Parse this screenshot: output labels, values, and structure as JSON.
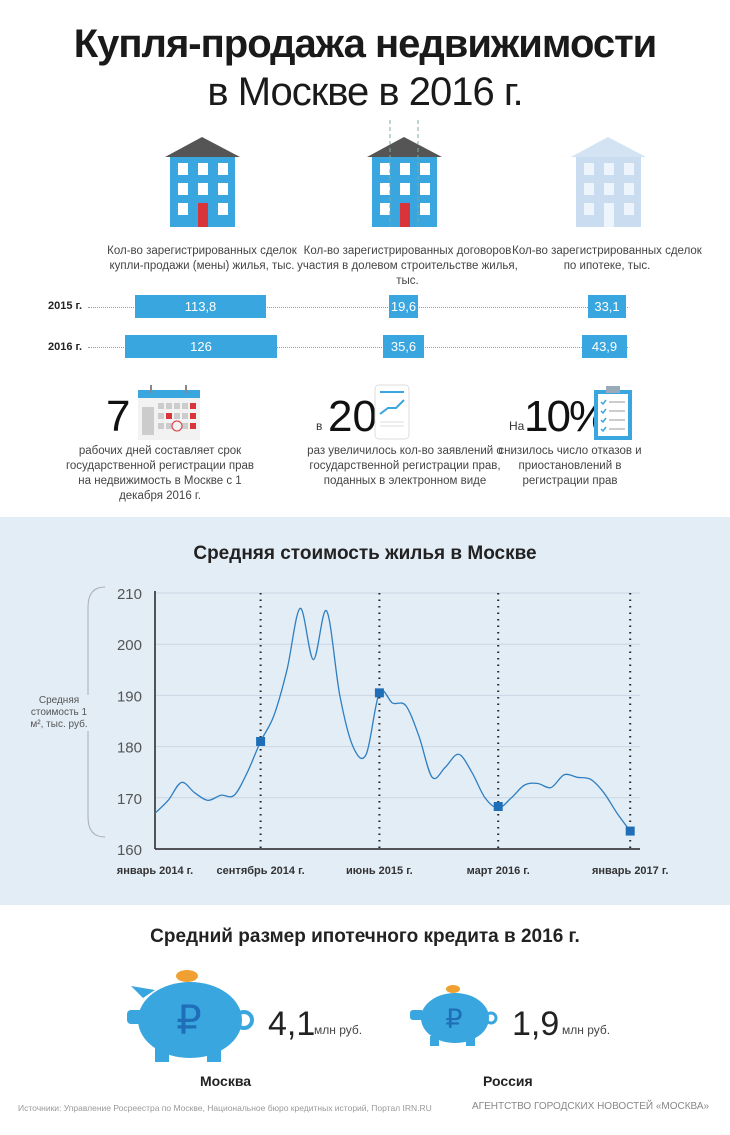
{
  "title": {
    "line1": "Купля-продажа недвижимости",
    "line2": "в Москве в 2016 г."
  },
  "stats": {
    "captions": [
      "Кол-во зарегистрированных сделок купли-продажи (мены) жилья, тыс.",
      "Кол-во зарегистрированных договоров участия в долевом строительстве жилья, тыс.",
      "Кол-во зарегистрированных сделок по ипотеке, тыс."
    ],
    "years": [
      "2015 г.",
      "2016 г."
    ],
    "values_2015": [
      "113,8",
      "19,6",
      "33,1"
    ],
    "values_2016": [
      "126",
      "35,6",
      "43,9"
    ]
  },
  "facts": [
    {
      "prefix": "",
      "number": "7",
      "text": "рабочих дней составляет срок государственной регистрации прав на недвижимость в Москве с 1 декабря 2016 г."
    },
    {
      "prefix": "в",
      "number": "20",
      "text": "раз увеличилось кол-во заявлений о государственной регистрации прав, поданных в электронном виде"
    },
    {
      "prefix": "На",
      "number": "10%",
      "text": "снизилось число отказов и приостановлений в регистрации прав"
    }
  ],
  "chart_data": {
    "type": "line",
    "title": "Средняя стоимость жилья в Москве",
    "ylabel": "Средняя стоимость 1 м², тыс. руб.",
    "ylim": [
      160,
      210
    ],
    "yticks": [
      160,
      170,
      180,
      190,
      200,
      210
    ],
    "x_start": "январь 2014 г.",
    "xtick_labels": [
      {
        "month": 0,
        "label": "январь 2014 г."
      },
      {
        "month": 8,
        "label": "сентябрь 2014 г."
      },
      {
        "month": 17,
        "label": "июнь 2015 г."
      },
      {
        "month": 26,
        "label": "март 2016 г."
      },
      {
        "month": 36,
        "label": "январь 2017 г."
      }
    ],
    "series": [
      {
        "name": "Средняя стоимость 1 м²",
        "points": [
          [
            0,
            167
          ],
          [
            1,
            169.5
          ],
          [
            2,
            173
          ],
          [
            3,
            171
          ],
          [
            4,
            169.5
          ],
          [
            5,
            170.5
          ],
          [
            6,
            170.5
          ],
          [
            7,
            175
          ],
          [
            8,
            181
          ],
          [
            9,
            186
          ],
          [
            10,
            195
          ],
          [
            11,
            207
          ],
          [
            12,
            197
          ],
          [
            13,
            206.5
          ],
          [
            14,
            190
          ],
          [
            15,
            180
          ],
          [
            16,
            178.5
          ],
          [
            17,
            190.5
          ],
          [
            18,
            188.5
          ],
          [
            19,
            188
          ],
          [
            20,
            182
          ],
          [
            21,
            174
          ],
          [
            22,
            176
          ],
          [
            23,
            178.5
          ],
          [
            24,
            175
          ],
          [
            25,
            170
          ],
          [
            26,
            168
          ],
          [
            27,
            170
          ],
          [
            28,
            172.5
          ],
          [
            29,
            172.8
          ],
          [
            30,
            172
          ],
          [
            31,
            174.5
          ],
          [
            32,
            174
          ],
          [
            33,
            173.6
          ],
          [
            34,
            171
          ],
          [
            35,
            167
          ],
          [
            36,
            163.5
          ]
        ]
      }
    ],
    "markers": [
      [
        8,
        181
      ],
      [
        17,
        190.5
      ],
      [
        26,
        168.3
      ],
      [
        36,
        163.5
      ]
    ],
    "marker_lines": [
      8,
      17,
      26,
      36
    ],
    "grid": true
  },
  "mortgage": {
    "title": "Средний размер ипотечного кредита в 2016 г.",
    "items": [
      {
        "city": "Москва",
        "amount": "4,1",
        "unit": "млн руб."
      },
      {
        "city": "Россия",
        "amount": "1,9",
        "unit": "млн руб."
      }
    ]
  },
  "footer": {
    "sources": "Источники: Управление Росреестра по Москве, Национальное бюро кредитных историй, Портал IRN.RU",
    "agency": "АГЕНТСТВО ГОРОДСКИХ НОВОСТЕЙ «МОСКВА»"
  },
  "colors": {
    "accent": "#3aa6df",
    "marker": "#1f6fb8",
    "band": "#e3edf6"
  }
}
